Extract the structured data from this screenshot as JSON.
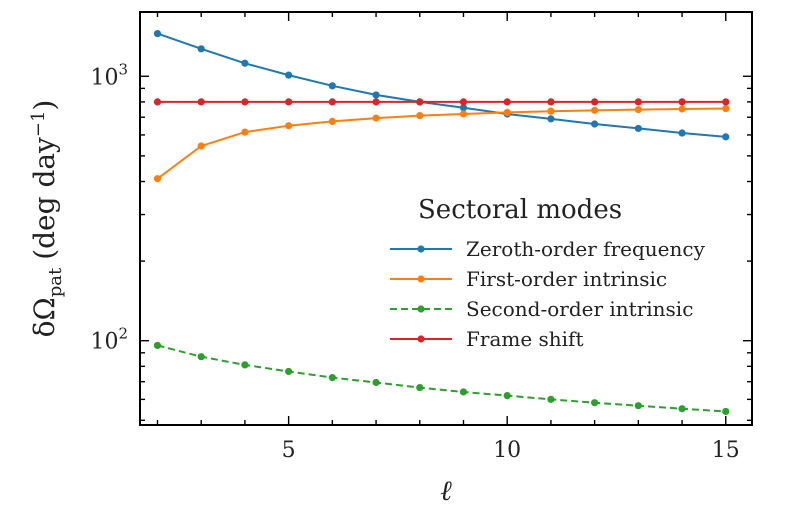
{
  "chart_data": {
    "type": "line",
    "xlabel": "ℓ",
    "ylabel": "δΩ",
    "ylabel_sub": "pat",
    "ylabel_units": "(deg day",
    "ylabel_units_sup": "−1",
    "ylabel_units_close": ")",
    "xlim": [
      1.6,
      15.6
    ],
    "ylim": [
      48,
      1750
    ],
    "yscale": "log",
    "x_ticks": [
      5,
      10,
      15
    ],
    "x_tick_labels": [
      "5",
      "10",
      "15"
    ],
    "y_ticks": [
      100,
      1000
    ],
    "y_tick_base": "10",
    "y_tick_exps": [
      "2",
      "3"
    ],
    "grid": false,
    "legend_title": "Sectoral modes",
    "legend_position": "center-right",
    "x": [
      2,
      3,
      4,
      5,
      6,
      7,
      8,
      9,
      10,
      11,
      12,
      13,
      14,
      15
    ],
    "series": [
      {
        "name": "Zeroth-order frequency",
        "color": "#1f77b4",
        "dashed": false,
        "values": [
          1450,
          1270,
          1120,
          1010,
          920,
          850,
          800,
          760,
          720,
          690,
          660,
          635,
          610,
          590
        ]
      },
      {
        "name": "First-order intrinsic",
        "color": "#ff7f0e",
        "dashed": false,
        "values": [
          410,
          545,
          615,
          650,
          675,
          695,
          710,
          720,
          730,
          738,
          743,
          748,
          752,
          755
        ]
      },
      {
        "name": "Second-order intrinsic",
        "color": "#2ca02c",
        "dashed": true,
        "values": [
          96,
          87,
          81,
          76.5,
          72.5,
          69.5,
          66.5,
          64,
          62,
          60,
          58.3,
          56.8,
          55.3,
          54
        ]
      },
      {
        "name": "Frame shift",
        "color": "#d62728",
        "dashed": false,
        "values": [
          800,
          800,
          800,
          800,
          800,
          800,
          800,
          800,
          800,
          800,
          800,
          800,
          800,
          800
        ]
      }
    ]
  }
}
